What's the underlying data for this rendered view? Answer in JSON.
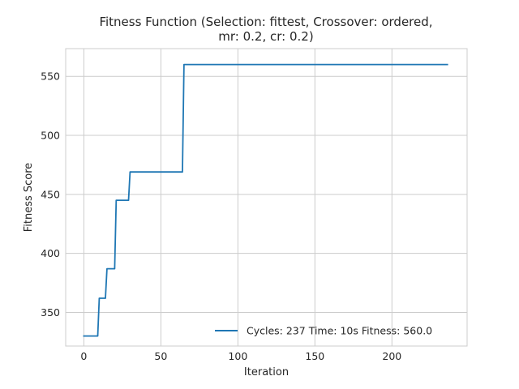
{
  "chart_data": {
    "type": "line",
    "title_lines": [
      "Fitness Function (Selection: fittest, Crossover: ordered,",
      "mr: 0.2, cr: 0.2)"
    ],
    "xlabel": "Iteration",
    "ylabel": "Fitness Score",
    "xlim": [
      -11.8,
      248.8
    ],
    "ylim": [
      321.5,
      573.5
    ],
    "xticks": [
      0,
      50,
      100,
      150,
      200
    ],
    "yticks": [
      350,
      400,
      450,
      500,
      550
    ],
    "grid": true,
    "legend_position": "lower-right",
    "series": [
      {
        "name": "Cycles: 237 Time: 10s Fitness: 560.0",
        "color": "#1f77b4",
        "x": [
          0,
          9,
          10,
          14,
          15,
          20,
          21,
          29,
          30,
          64,
          65,
          236
        ],
        "y": [
          330,
          330,
          362,
          362,
          387,
          387,
          445,
          445,
          469,
          469,
          560,
          560
        ]
      }
    ]
  }
}
